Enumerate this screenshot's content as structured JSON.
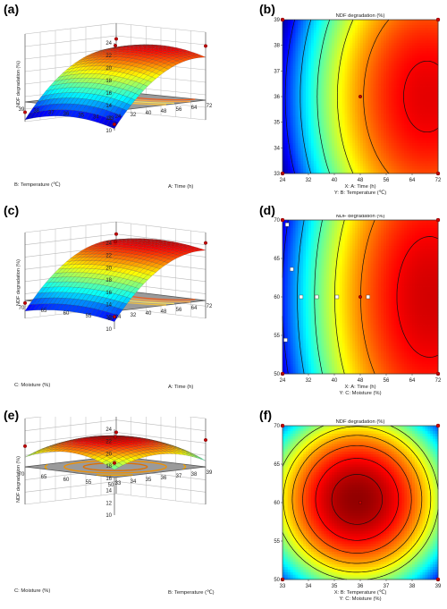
{
  "chart_data": [
    {
      "panel": "(a)",
      "type": "surface3d",
      "zlabel": "NDF degradation (%)",
      "xlabel": "A: Time (h)",
      "ylabel": "B: Temperature (℃)",
      "x_ticks": [
        "24",
        "32",
        "40",
        "48",
        "56",
        "64",
        "72"
      ],
      "y_ticks": [
        "33",
        "34",
        "35",
        "36",
        "37",
        "38",
        "39"
      ],
      "z_ticks": [
        "10",
        "12",
        "14",
        "16",
        "18",
        "20",
        "22",
        "24"
      ],
      "zlim": [
        10,
        24
      ],
      "xlim": [
        24,
        72
      ],
      "ylim": [
        33,
        39
      ],
      "peak_z": 22,
      "low_z": 11
    },
    {
      "panel": "(b)",
      "type": "contour",
      "title": "NDF degradation (%)",
      "xlabel": "X: A: Time (h)",
      "ylabel": "Y: B: Temperature (℃)",
      "x_ticks": [
        "24",
        "32",
        "40",
        "48",
        "56",
        "64",
        "72"
      ],
      "y_ticks": [
        "33",
        "34",
        "35",
        "36",
        "37",
        "38",
        "39"
      ],
      "xlim": [
        24,
        72
      ],
      "ylim": [
        33,
        39
      ],
      "center_point": {
        "x": 48,
        "y": 36
      }
    },
    {
      "panel": "(c)",
      "type": "surface3d",
      "zlabel": "NDF degradation (%)",
      "xlabel": "A: Time (h)",
      "ylabel": "C: Moisture (%)",
      "x_ticks": [
        "24",
        "32",
        "40",
        "48",
        "56",
        "64",
        "72"
      ],
      "y_ticks": [
        "50",
        "55",
        "60",
        "65",
        "70"
      ],
      "z_ticks": [
        "10",
        "12",
        "14",
        "16",
        "18",
        "20",
        "22",
        "24"
      ],
      "zlim": [
        10,
        24
      ],
      "xlim": [
        24,
        72
      ],
      "ylim": [
        50,
        70
      ],
      "peak_z": 22.5,
      "low_z": 12
    },
    {
      "panel": "(d)",
      "type": "contour",
      "title": "NDF degradation (%)",
      "xlabel": "X: A: Time (h)",
      "ylabel": "Y: C: Moisture (%)",
      "x_ticks": [
        "24",
        "32",
        "40",
        "48",
        "56",
        "64",
        "72"
      ],
      "y_ticks": [
        "50",
        "55",
        "60",
        "65",
        "70"
      ],
      "xlim": [
        24,
        72
      ],
      "ylim": [
        50,
        70
      ],
      "center_point": {
        "x": 48,
        "y": 60
      }
    },
    {
      "panel": "(e)",
      "type": "surface3d",
      "zlabel": "NDF degradation (%)",
      "xlabel": "B: Temperature (℃)",
      "ylabel": "C: Moisture (%)",
      "x_ticks": [
        "33",
        "34",
        "35",
        "36",
        "37",
        "38",
        "39"
      ],
      "y_ticks": [
        "50",
        "55",
        "60",
        "65",
        "70"
      ],
      "z_ticks": [
        "10",
        "12",
        "14",
        "16",
        "18",
        "20",
        "22",
        "24"
      ],
      "zlim": [
        10,
        24
      ],
      "xlim": [
        33,
        39
      ],
      "ylim": [
        50,
        70
      ],
      "peak_z": 21,
      "low_z": 18
    },
    {
      "panel": "(f)",
      "type": "contour",
      "title": "NDF degradation (%)",
      "xlabel": "X: B: Temperature (℃)",
      "ylabel": "Y: C: Moisture (%)",
      "x_ticks": [
        "33",
        "34",
        "35",
        "36",
        "37",
        "38",
        "39"
      ],
      "y_ticks": [
        "50",
        "55",
        "60",
        "65",
        "70"
      ],
      "xlim": [
        33,
        39
      ],
      "ylim": [
        50,
        70
      ],
      "center_point": {
        "x": 36,
        "y": 60
      }
    }
  ]
}
